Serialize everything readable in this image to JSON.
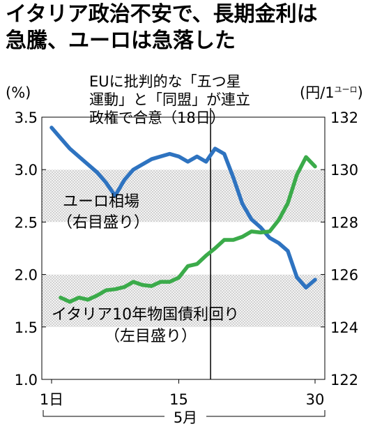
{
  "headline": {
    "line1": "イタリア政治不安で、長期金利は",
    "line2": "急騰、ユーロは急落した"
  },
  "chart_data": {
    "type": "line",
    "annotation": [
      "EUに批判的な「五つ星",
      "運動」と「同盟」が連立",
      "政権で合意（18日）"
    ],
    "event_day": 18,
    "left_axis": {
      "unit": "(%)",
      "ticks": [
        "3.5",
        "3.0",
        "2.5",
        "2.0",
        "1.5",
        "1.0"
      ],
      "ylim": [
        1.0,
        3.5
      ]
    },
    "right_axis": {
      "unit_prefix": "(円/1",
      "unit_small": "ユーロ",
      "unit_suffix": ")",
      "ticks": [
        "132",
        "130",
        "128",
        "126",
        "124",
        "122"
      ],
      "ylim": [
        122,
        132
      ]
    },
    "x_axis": {
      "ticks": [
        "1日",
        "15",
        "30"
      ],
      "month_label": "5月",
      "xlim": [
        1,
        30
      ]
    },
    "series": [
      {
        "name": "ユーロ相場",
        "name_sub": "（右目盛り）",
        "axis": "right",
        "color": "#2e73c0",
        "x": [
          1,
          2,
          3,
          4,
          5,
          6,
          7,
          8,
          9,
          10,
          11,
          12,
          13,
          14,
          15,
          16,
          17,
          18,
          19,
          20,
          21,
          22,
          23,
          24,
          25,
          26,
          27,
          28,
          29,
          30
        ],
        "values": [
          131.6,
          131.2,
          130.8,
          130.5,
          130.2,
          129.9,
          129.5,
          129.0,
          129.6,
          130.0,
          130.2,
          130.4,
          130.5,
          130.6,
          130.5,
          130.3,
          130.5,
          130.3,
          130.8,
          130.6,
          129.7,
          128.7,
          128.1,
          127.8,
          127.4,
          127.2,
          126.9,
          125.9,
          125.5,
          125.8
        ]
      },
      {
        "name": "イタリア10年物国債利回り",
        "name_sub": "（左目盛り）",
        "axis": "left",
        "color": "#3bab4a",
        "x": [
          2,
          3,
          4,
          5,
          6,
          7,
          8,
          9,
          10,
          11,
          12,
          13,
          14,
          15,
          16,
          17,
          18,
          19,
          20,
          21,
          22,
          23,
          24,
          25,
          26,
          27,
          28,
          29,
          30
        ],
        "values": [
          1.78,
          1.74,
          1.78,
          1.76,
          1.8,
          1.85,
          1.86,
          1.88,
          1.93,
          1.9,
          1.89,
          1.93,
          1.93,
          1.97,
          2.08,
          2.1,
          2.18,
          2.25,
          2.33,
          2.33,
          2.36,
          2.41,
          2.4,
          2.41,
          2.52,
          2.68,
          2.95,
          3.12,
          3.03
        ]
      }
    ]
  }
}
